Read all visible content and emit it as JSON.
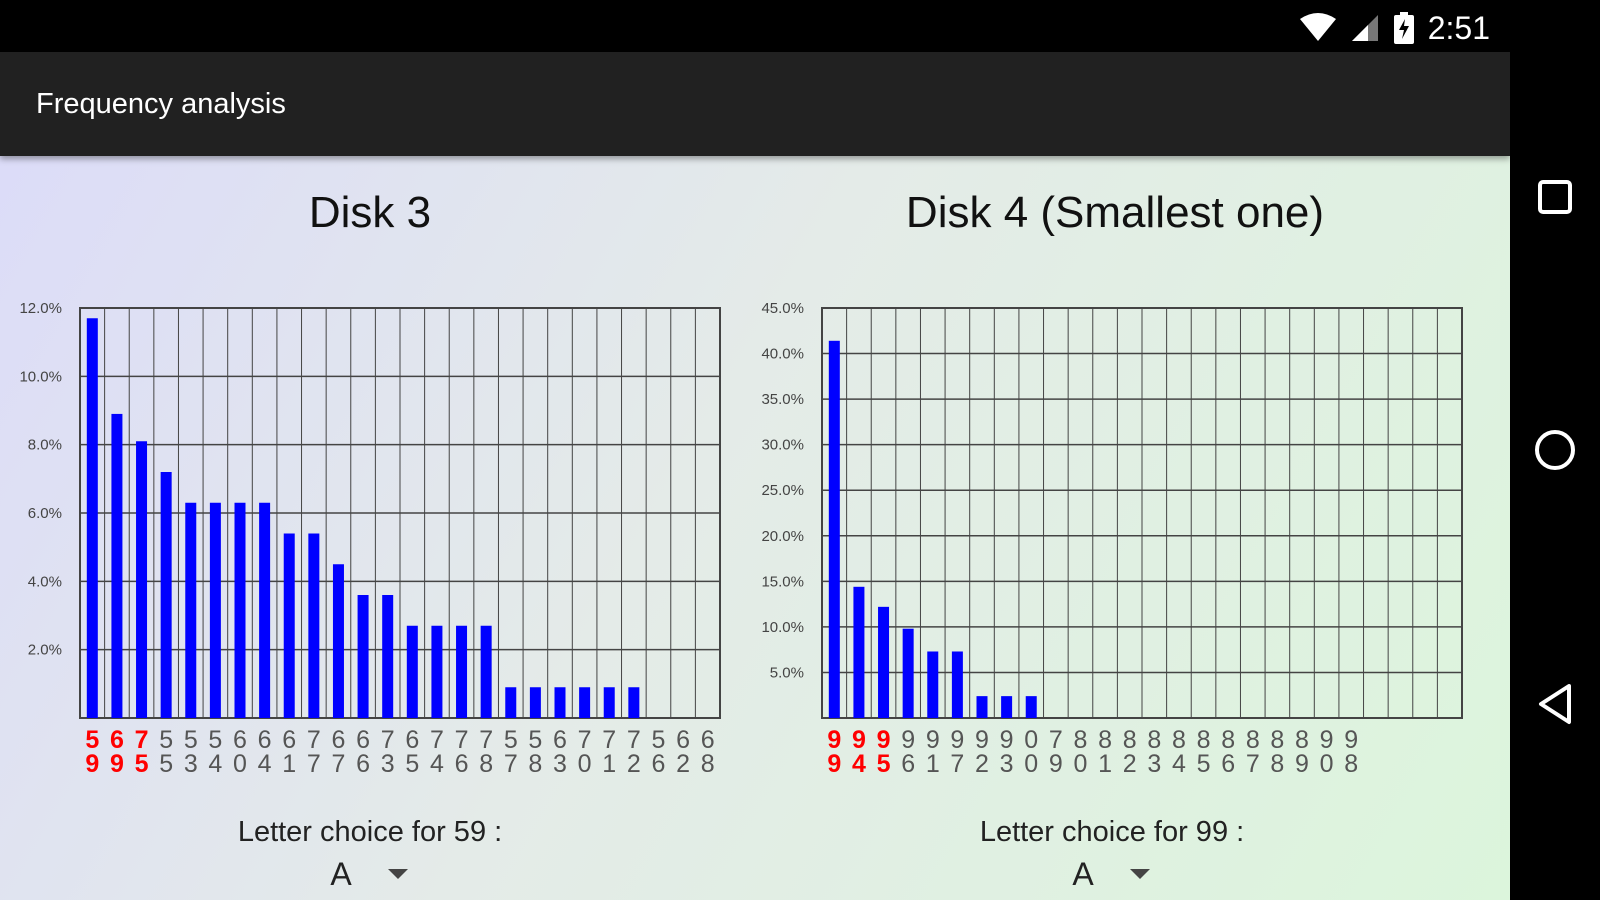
{
  "status_bar": {
    "time": "2:51",
    "icons": [
      "wifi-icon",
      "signal-icon",
      "battery-charging-icon"
    ]
  },
  "app_bar": {
    "title": "Frequency analysis"
  },
  "panels": [
    {
      "title": "Disk 3",
      "choice_label": "Letter choice for 59 :",
      "choice_value": "A"
    },
    {
      "title": "Disk 4 (Smallest one)",
      "choice_label": "Letter choice for 99 :",
      "choice_value": "A"
    }
  ],
  "nav_bar": {
    "icons": [
      "recents-square-icon",
      "home-circle-icon",
      "back-triangle-icon"
    ]
  },
  "colors": {
    "bar": "#0000ff",
    "highlight_label": "#ff0000",
    "label": "#555555",
    "grid": "#444444"
  },
  "chart_data": [
    {
      "type": "bar",
      "title": "",
      "xlabel": "",
      "ylabel": "",
      "ylim": [
        0,
        12
      ],
      "yticks": [
        "2.0%",
        "4.0%",
        "6.0%",
        "8.0%",
        "10.0%",
        "12.0%"
      ],
      "grid": true,
      "categories": [
        "59",
        "69",
        "75",
        "55",
        "53",
        "54",
        "60",
        "64",
        "61",
        "77",
        "67",
        "66",
        "73",
        "65",
        "74",
        "76",
        "78",
        "57",
        "58",
        "63",
        "70",
        "71",
        "72",
        "56",
        "62",
        "68"
      ],
      "highlighted_categories": [
        "59",
        "69",
        "75"
      ],
      "values": [
        11.7,
        8.9,
        8.1,
        7.2,
        6.3,
        6.3,
        6.3,
        6.3,
        5.4,
        5.4,
        4.5,
        3.6,
        3.6,
        2.7,
        2.7,
        2.7,
        2.7,
        0.9,
        0.9,
        0.9,
        0.9,
        0.9,
        0.9,
        0,
        0,
        0
      ]
    },
    {
      "type": "bar",
      "title": "",
      "xlabel": "",
      "ylabel": "",
      "ylim": [
        0,
        45
      ],
      "yticks": [
        "5.0%",
        "10.0%",
        "15.0%",
        "20.0%",
        "25.0%",
        "30.0%",
        "35.0%",
        "40.0%",
        "45.0%"
      ],
      "grid": true,
      "categories": [
        "99",
        "94",
        "95",
        "96",
        "91",
        "97",
        "92",
        "93",
        "00",
        "79",
        "80",
        "81",
        "82",
        "83",
        "84",
        "85",
        "86",
        "87",
        "88",
        "89",
        "90",
        "98"
      ],
      "highlighted_categories": [
        "99",
        "94",
        "95"
      ],
      "values": [
        41.4,
        14.4,
        12.2,
        9.8,
        7.3,
        7.3,
        2.4,
        2.4,
        2.4,
        0,
        0,
        0,
        0,
        0,
        0,
        0,
        0,
        0,
        0,
        0,
        0,
        0
      ]
    }
  ]
}
